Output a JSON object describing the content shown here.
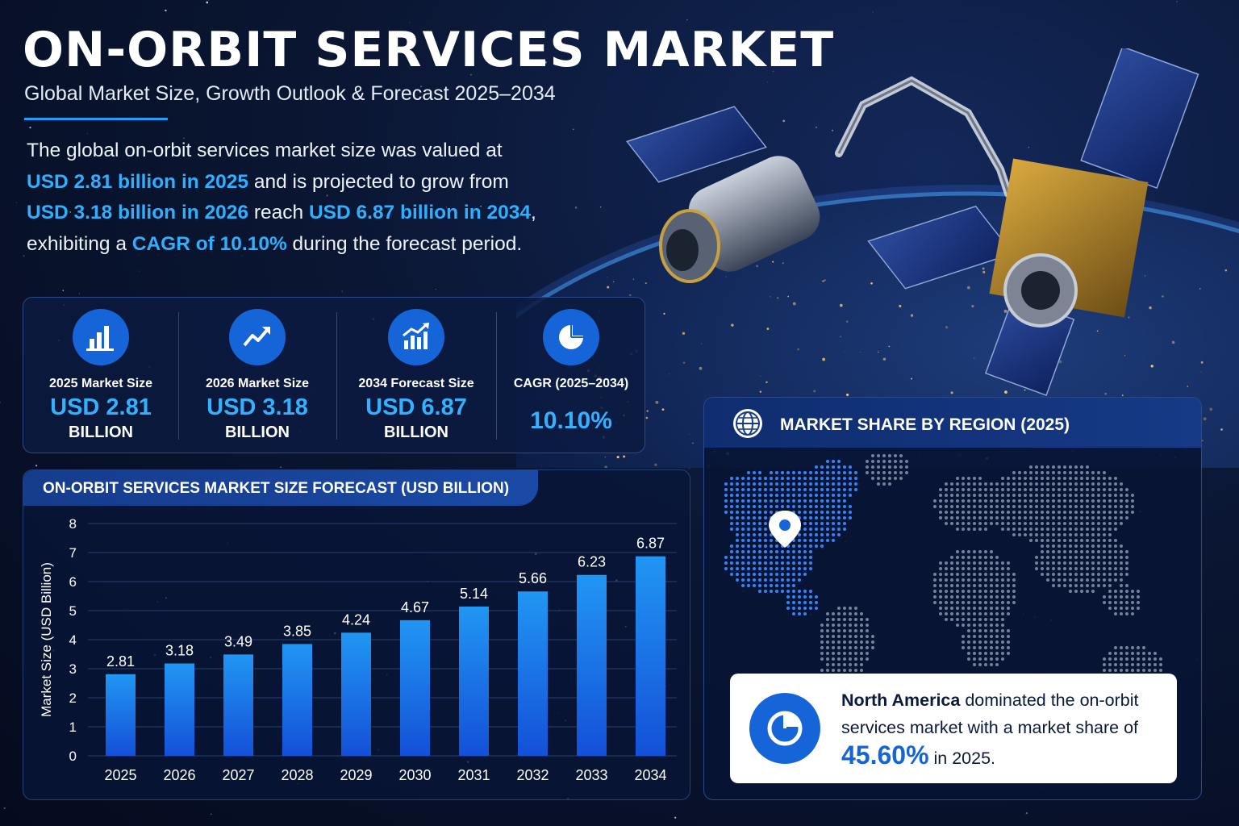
{
  "header": {
    "title": "ON-ORBIT SERVICES MARKET",
    "subtitle": "Global Market Size, Growth Outlook & Forecast 2025–2034"
  },
  "intro": {
    "t1": "The global on-orbit services market size was valued at ",
    "h1": "USD 2.81 billion in 2025",
    "t2": " and is projected to grow from ",
    "h2": "USD 3.18 billion in 2026",
    "t3": " reach ",
    "h3": "USD 6.87 billion in 2034",
    "t4": ", exhibiting a ",
    "h4": "CAGR of 10.10%",
    "t5": " during the forecast period."
  },
  "kpis": [
    {
      "label": "2025 Market Size",
      "value": "USD 2.81",
      "unit": "BILLION",
      "icon": "bar-chart-icon"
    },
    {
      "label": "2026 Market Size",
      "value": "USD 3.18",
      "unit": "BILLION",
      "icon": "trend-up-icon"
    },
    {
      "label": "2034 Forecast Size",
      "value": "USD 6.87",
      "unit": "BILLION",
      "icon": "growth-chart-icon"
    },
    {
      "label": "CAGR (2025–2034)",
      "value": "10.10%",
      "unit": "",
      "icon": "pie-chart-icon"
    }
  ],
  "colors": {
    "accent": "#2fb0ff",
    "bar_top": "#2196f3",
    "bar_bottom": "#1450d8",
    "panel": "#0a1a40",
    "brand_blue": "#1565d8"
  },
  "chart_data": {
    "type": "bar",
    "title": "ON-ORBIT SERVICES MARKET SIZE FORECAST (USD BILLION)",
    "xlabel": "",
    "ylabel": "Market Size (USD Billion)",
    "ylim": [
      0,
      8
    ],
    "yticks": [
      0,
      1,
      2,
      3,
      4,
      5,
      6,
      7,
      8
    ],
    "grid": true,
    "categories": [
      "2025",
      "2026",
      "2027",
      "2028",
      "2029",
      "2030",
      "2031",
      "2032",
      "2033",
      "2034"
    ],
    "values": [
      2.81,
      3.18,
      3.49,
      3.85,
      4.24,
      4.67,
      5.14,
      5.66,
      6.23,
      6.87
    ],
    "value_labels": [
      "2.81",
      "3.18",
      "3.49",
      "3.85",
      "4.24",
      "4.67",
      "5.14",
      "5.66",
      "6.23",
      "6.87"
    ]
  },
  "region": {
    "title": "MARKET SHARE BY REGION (2025)",
    "region_name": "North America",
    "text_a": " dominated the on-orbit services market with a market share of ",
    "share": "45.60%",
    "text_b": " in 2025."
  }
}
